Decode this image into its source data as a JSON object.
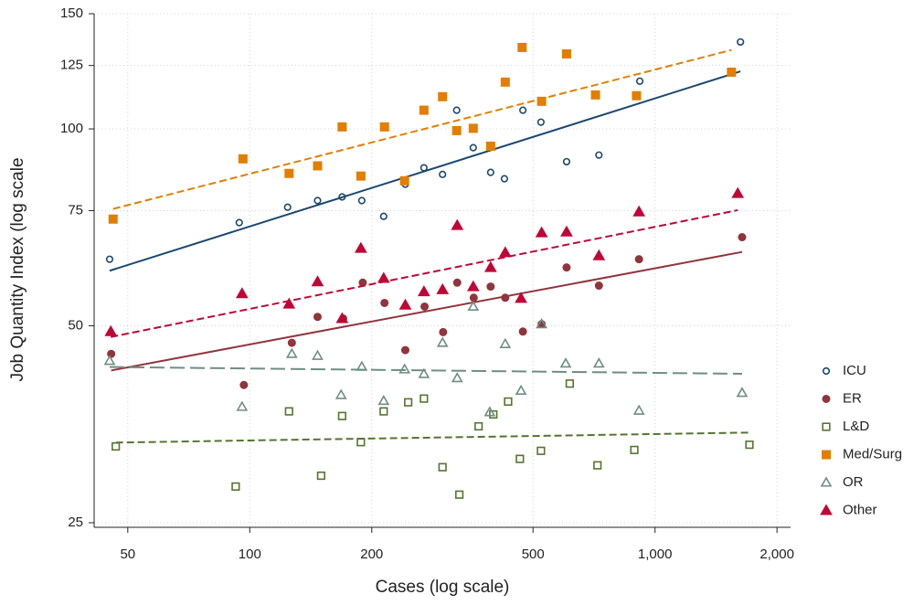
{
  "chart_data": {
    "type": "scatter",
    "x_label": "Cases (log scale)",
    "y_label": "Job Quantity Index (log scale",
    "xlog": true,
    "ylog": true,
    "grid": true,
    "fit_lines": true,
    "legend": "right",
    "xlim": [
      41.3,
      2160
    ],
    "ylim": [
      24.6,
      150
    ],
    "xticks": [
      50,
      100,
      200,
      500,
      {
        "value": 1000,
        "label": "1,000"
      },
      {
        "value": 2000,
        "label": "2,000"
      }
    ],
    "yticks": [
      25,
      50,
      75,
      100,
      125,
      150
    ],
    "series": [
      {
        "name": "ICU",
        "color": "#1a476f",
        "marker": "circle",
        "filled": false,
        "line_style": "solid",
        "x": [
          45.1,
          94.2,
          124,
          147,
          169,
          189,
          214,
          242,
          269,
          299,
          324,
          356,
          393,
          425,
          472,
          523,
          605,
          727,
          917,
          1625
        ],
        "values": [
          63.2,
          71.9,
          75.9,
          77.7,
          78.7,
          77.7,
          73.5,
          82.3,
          87.2,
          85.2,
          106.8,
          93.6,
          85.8,
          83.9,
          106.8,
          102.4,
          89.1,
          91.2,
          118.3,
          135.8
        ]
      },
      {
        "name": "ER",
        "color": "#90353b",
        "marker": "circle",
        "filled": true,
        "line_style": "solid",
        "x": [
          45.5,
          96.7,
          127,
          147,
          170,
          190,
          215,
          242,
          270,
          300,
          325,
          357,
          393,
          427,
          472,
          525,
          605,
          727,
          913,
          1640
        ],
        "values": [
          45.3,
          40.6,
          47.1,
          51.6,
          51.3,
          58.2,
          54.2,
          45.9,
          53.5,
          48.9,
          58.2,
          55.2,
          57.4,
          55.2,
          49.0,
          50.3,
          61.4,
          57.6,
          63.2,
          68.3
        ]
      },
      {
        "name": "L&D",
        "color": "#55752f",
        "marker": "square",
        "filled": false,
        "line_style": "dashed",
        "x": [
          46.7,
          92.3,
          125,
          150,
          169,
          188,
          214,
          246,
          269,
          299,
          329,
          367,
          399,
          434,
          464,
          523,
          616,
          721,
          889,
          1710
        ],
        "values": [
          32.7,
          28.4,
          37.0,
          29.5,
          36.4,
          33.2,
          37.0,
          38.2,
          38.7,
          30.4,
          27.6,
          35.1,
          36.6,
          38.3,
          31.3,
          32.2,
          40.8,
          30.6,
          32.3,
          32.9
        ]
      },
      {
        "name": "Med/Surg",
        "color": "#e37e00",
        "marker": "square",
        "filled": true,
        "line_style": "dashed",
        "x": [
          46.0,
          96.2,
          125,
          147,
          169,
          188,
          215,
          241,
          269,
          299,
          324,
          356,
          393,
          427,
          470,
          525,
          605,
          713,
          900,
          1544
        ],
        "values": [
          72.8,
          90.0,
          85.5,
          87.8,
          100.7,
          84.7,
          100.7,
          83.3,
          106.8,
          112.0,
          99.4,
          100.2,
          94.1,
          117.9,
          133.2,
          110.2,
          130.2,
          112.7,
          112.4,
          122.1
        ]
      },
      {
        "name": "OR",
        "color": "#6e8e84",
        "marker": "triangle",
        "filled": false,
        "line_style": "longdash",
        "x": [
          45.1,
          95.7,
          127,
          147,
          168,
          189,
          214,
          241,
          269,
          299,
          325,
          356,
          391,
          427,
          467,
          525,
          602,
          727,
          913,
          1640
        ],
        "values": [
          44.2,
          37.6,
          45.3,
          45.0,
          39.2,
          43.3,
          38.4,
          42.9,
          42.2,
          47.1,
          41.6,
          53.5,
          36.9,
          46.9,
          39.8,
          50.3,
          43.8,
          43.8,
          37.1,
          39.5
        ]
      },
      {
        "name": "Other",
        "color": "#c10534",
        "marker": "triangle",
        "filled": true,
        "line_style": "dashed",
        "x": [
          45.4,
          95.7,
          125,
          147,
          169,
          188,
          214,
          242,
          269,
          299,
          325,
          356,
          393,
          427,
          467,
          525,
          605,
          727,
          913,
          1600
        ],
        "values": [
          49.0,
          56.0,
          54.0,
          58.4,
          51.3,
          65.7,
          59.1,
          53.8,
          56.4,
          56.8,
          71.2,
          57.4,
          61.4,
          64.7,
          55.1,
          69.4,
          69.6,
          64.0,
          74.7,
          79.7
        ]
      }
    ]
  }
}
